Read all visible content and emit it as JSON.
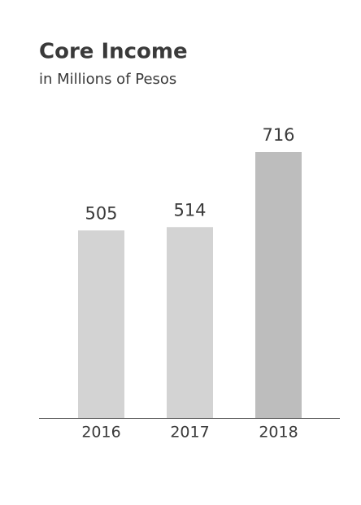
{
  "chart_data": {
    "type": "bar",
    "title": "Core Income",
    "subtitle": "in Millions of Pesos",
    "categories": [
      "2016",
      "2017",
      "2018"
    ],
    "values": [
      505,
      514,
      716
    ],
    "colors": [
      "#d3d3d3",
      "#d3d3d3",
      "#bdbdbd"
    ]
  }
}
